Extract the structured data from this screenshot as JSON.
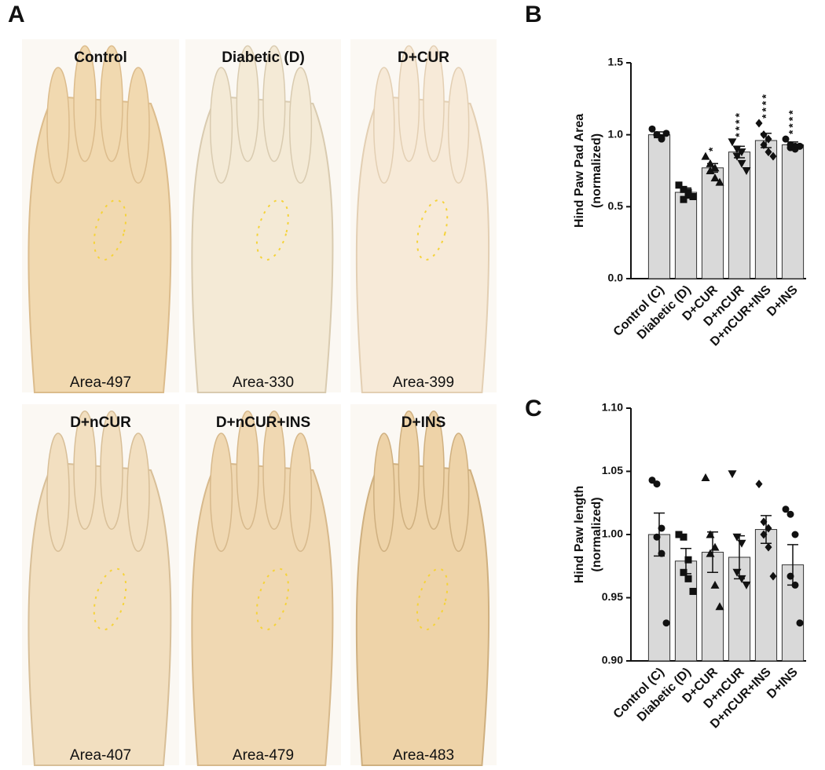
{
  "panel_a": {
    "label": "A",
    "photos": [
      {
        "title": "Control",
        "area": "Area-497"
      },
      {
        "title": "Diabetic (D)",
        "area": "Area-330"
      },
      {
        "title": "D+CUR",
        "area": "Area-399"
      },
      {
        "title": "D+nCUR",
        "area": "Area-407"
      },
      {
        "title": "D+nCUR+INS",
        "area": "Area-479"
      },
      {
        "title": "D+INS",
        "area": "Area-483"
      }
    ]
  },
  "chart_data": [
    {
      "type": "bar",
      "label": "B",
      "ylabel": [
        "Hind Paw Pad Area",
        "(normalized)"
      ],
      "categories": [
        "Control (C)",
        "Diabetic (D)",
        "D+CUR",
        "D+nCUR",
        "D+nCUR+INS",
        "D+INS"
      ],
      "values": [
        1.0,
        0.6,
        0.77,
        0.88,
        0.96,
        0.93
      ],
      "errors": [
        0.02,
        0.03,
        0.03,
        0.04,
        0.05,
        0.02
      ],
      "points": [
        [
          1.04,
          1.0,
          0.98,
          1.0,
          0.97,
          1.01
        ],
        [
          0.65,
          0.62,
          0.58,
          0.55,
          0.6,
          0.57
        ],
        [
          0.85,
          0.8,
          0.77,
          0.75,
          0.7,
          0.67
        ],
        [
          0.95,
          0.9,
          0.88,
          0.85,
          0.8,
          0.75
        ],
        [
          1.08,
          1.0,
          0.97,
          0.93,
          0.88,
          0.85
        ],
        [
          0.97,
          0.93,
          0.92,
          0.91,
          0.9,
          0.92
        ]
      ],
      "markers": [
        "circle",
        "square",
        "triangle-up",
        "triangle-down",
        "diamond",
        "circle"
      ],
      "annotations": [
        null,
        null,
        "*",
        "****",
        "****",
        "****"
      ],
      "color": "#d9d9d9",
      "ylim": [
        0,
        1.5
      ],
      "yticks": [
        {
          "value": 0,
          "label": "0.0"
        },
        {
          "value": 0.5,
          "label": "0.5"
        },
        {
          "value": 1,
          "label": "1.0"
        },
        {
          "value": 1.5,
          "label": "1.5"
        }
      ]
    },
    {
      "type": "bar",
      "label": "C",
      "ylabel": [
        "Hind Paw length",
        "(normalized)"
      ],
      "categories": [
        "Control (C)",
        "Diabetic (D)",
        "D+CUR",
        "D+nCUR",
        "D+nCUR+INS",
        "D+INS"
      ],
      "values": [
        1.0,
        0.979,
        0.986,
        0.982,
        1.004,
        0.976
      ],
      "errors": [
        0.017,
        0.01,
        0.016,
        0.017,
        0.011,
        0.016
      ],
      "points": [
        [
          1.043,
          1.04,
          1.005,
          0.998,
          0.985,
          0.93
        ],
        [
          1.0,
          0.998,
          0.98,
          0.97,
          0.965,
          0.955
        ],
        [
          1.045,
          1.0,
          0.99,
          0.985,
          0.96,
          0.943
        ],
        [
          1.048,
          0.998,
          0.993,
          0.97,
          0.965,
          0.96
        ],
        [
          1.04,
          1.01,
          1.005,
          1.0,
          0.99,
          0.967
        ],
        [
          1.02,
          1.016,
          1.0,
          0.967,
          0.96,
          0.93
        ]
      ],
      "markers": [
        "circle",
        "square",
        "triangle-up",
        "triangle-down",
        "diamond",
        "circle"
      ],
      "color": "#d9d9d9",
      "ylim": [
        0.9,
        1.1
      ],
      "yticks": [
        {
          "value": 0.9,
          "label": "0.90"
        },
        {
          "value": 0.95,
          "label": "0.95"
        },
        {
          "value": 1,
          "label": "1.00"
        },
        {
          "value": 1.05,
          "label": "1.05"
        },
        {
          "value": 1.1,
          "label": "1.10"
        }
      ]
    }
  ]
}
